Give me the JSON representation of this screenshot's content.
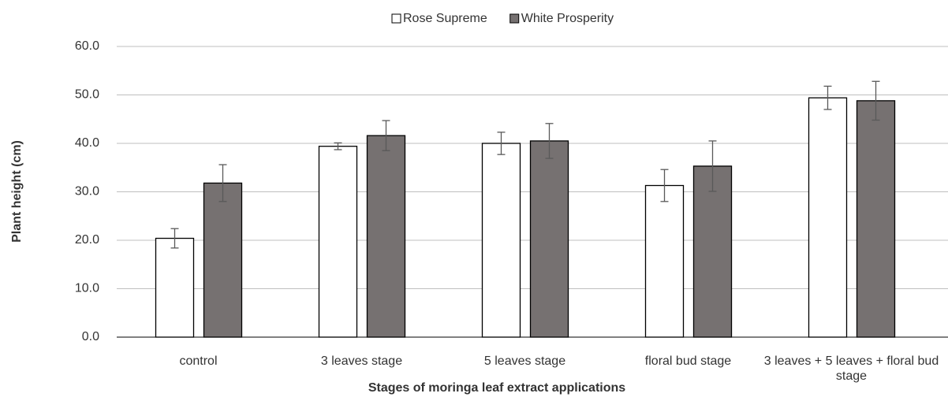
{
  "chart_data": {
    "type": "bar",
    "x_label": "Stages of moringa leaf extract applications",
    "y_label": "Plant height (cm)",
    "categories": [
      "control",
      "3 leaves stage",
      "5 leaves stage",
      "floral bud stage",
      "3 leaves + 5 leaves + floral bud stage"
    ],
    "series": [
      {
        "name": "Rose Supreme",
        "color": "#ffffff",
        "values": [
          20.4,
          39.4,
          40.0,
          31.3,
          49.4
        ],
        "errors": [
          2.0,
          0.7,
          2.3,
          3.3,
          2.4
        ]
      },
      {
        "name": "White Prosperity",
        "color": "#767171",
        "values": [
          31.8,
          41.6,
          40.5,
          35.3,
          48.8
        ],
        "errors": [
          3.8,
          3.1,
          3.6,
          5.2,
          4.0
        ]
      }
    ],
    "ylim": [
      0,
      60
    ],
    "yticks": [
      {
        "value": 0,
        "label": "0.0"
      },
      {
        "value": 10,
        "label": "10.0"
      },
      {
        "value": 20,
        "label": "20.0"
      },
      {
        "value": 30,
        "label": "30.0"
      },
      {
        "value": 40,
        "label": "40.0"
      },
      {
        "value": 50,
        "label": "50.0"
      },
      {
        "value": 60,
        "label": "60.0"
      }
    ],
    "grid": true,
    "legend": "top"
  }
}
